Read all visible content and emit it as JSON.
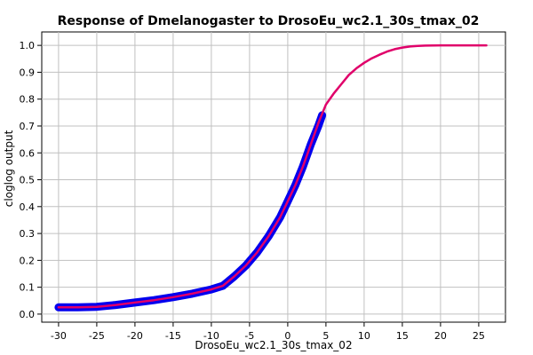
{
  "chart_data": {
    "type": "line",
    "title": "Response of Dmelanogaster to DrosoEu_wc2.1_30s_tmax_02",
    "xlabel": "DrosoEu_wc2.1_30s_tmax_02",
    "ylabel": "cloglog output",
    "xlim": [
      -32.2,
      28.5
    ],
    "ylim": [
      -0.03,
      1.05
    ],
    "xticks": [
      -30,
      -25,
      -20,
      -15,
      -10,
      -5,
      0,
      5,
      10,
      15,
      20,
      25
    ],
    "yticks": [
      0.0,
      0.1,
      0.2,
      0.3,
      0.4,
      0.5,
      0.6,
      0.7,
      0.8,
      0.9,
      1.0
    ],
    "grid": true,
    "legend": "none",
    "series": [
      {
        "role": "uncertainty-band",
        "color": "#0000ee",
        "x": [
          -30,
          -27.5,
          -25,
          -22.5,
          -20,
          -17.5,
          -15,
          -12.5,
          -10,
          -8.5,
          -7,
          -5.5,
          -4,
          -2.5,
          -1,
          0,
          1,
          2,
          3,
          4,
          4.5
        ],
        "values": [
          0.025,
          0.025,
          0.027,
          0.034,
          0.043,
          0.052,
          0.063,
          0.076,
          0.092,
          0.105,
          0.14,
          0.18,
          0.23,
          0.29,
          0.36,
          0.42,
          0.48,
          0.55,
          0.63,
          0.7,
          0.74
        ]
      },
      {
        "role": "mean",
        "color": "#e0006a",
        "x": [
          -30,
          -27.5,
          -25,
          -22.5,
          -20,
          -17.5,
          -15,
          -12.5,
          -10,
          -8.5,
          -7,
          -5.5,
          -4,
          -2.5,
          -1,
          0,
          1,
          2,
          3,
          4,
          5,
          6,
          7,
          8,
          9,
          10,
          11,
          12,
          13,
          14,
          15,
          16,
          17,
          18,
          20,
          22,
          24,
          26
        ],
        "values": [
          0.025,
          0.025,
          0.027,
          0.034,
          0.043,
          0.052,
          0.063,
          0.076,
          0.092,
          0.105,
          0.14,
          0.18,
          0.23,
          0.29,
          0.36,
          0.42,
          0.48,
          0.55,
          0.63,
          0.71,
          0.78,
          0.82,
          0.855,
          0.89,
          0.915,
          0.935,
          0.952,
          0.965,
          0.977,
          0.986,
          0.992,
          0.996,
          0.998,
          0.999,
          1.0,
          1.0,
          1.0,
          1.0
        ]
      }
    ]
  }
}
